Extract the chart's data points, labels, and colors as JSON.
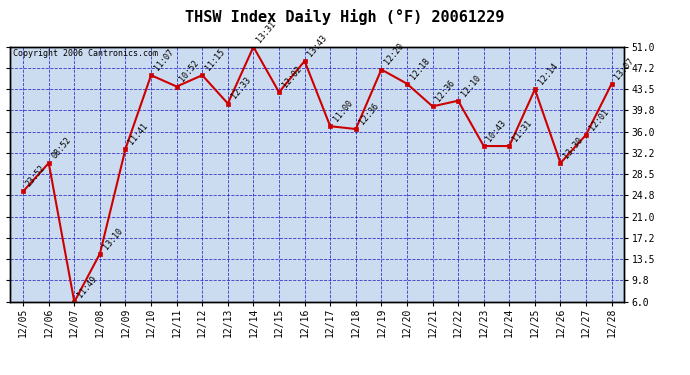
{
  "title": "THSW Index Daily High (°F) 20061229",
  "copyright": "Copyright 2006 Cantronics.com",
  "dates": [
    "12/05",
    "12/06",
    "12/07",
    "12/08",
    "12/09",
    "12/10",
    "12/11",
    "12/12",
    "12/13",
    "12/14",
    "12/15",
    "12/16",
    "12/17",
    "12/18",
    "12/19",
    "12/20",
    "12/21",
    "12/22",
    "12/23",
    "12/24",
    "12/25",
    "12/26",
    "12/27",
    "12/28"
  ],
  "values": [
    25.5,
    30.5,
    6.0,
    14.5,
    33.0,
    46.0,
    44.0,
    46.0,
    41.0,
    51.0,
    43.0,
    48.5,
    37.0,
    36.5,
    47.0,
    44.5,
    40.5,
    41.5,
    33.5,
    33.5,
    43.5,
    30.5,
    35.5,
    44.5
  ],
  "time_labels": [
    "23:52",
    "08:52",
    "11:49",
    "13:10",
    "11:41",
    "11:07",
    "10:52",
    "11:15",
    "12:33",
    "13:31",
    "12:02",
    "13:43",
    "11:00",
    "12:36",
    "12:20",
    "12:18",
    "12:36",
    "12:10",
    "10:43",
    "11:31",
    "12:14",
    "13:30",
    "12:01",
    "13:07"
  ],
  "ylim_min": 6.0,
  "ylim_max": 51.0,
  "yticks": [
    6.0,
    9.8,
    13.5,
    17.2,
    21.0,
    24.8,
    28.5,
    32.2,
    36.0,
    39.8,
    43.5,
    47.2,
    51.0
  ],
  "ytick_labels": [
    "6.0",
    "9.8",
    "13.5",
    "17.2",
    "21.0",
    "24.8",
    "28.5",
    "32.2",
    "36.0",
    "39.8",
    "43.5",
    "47.2",
    "51.0"
  ],
  "line_color": "#cc0000",
  "marker_color": "#cc0000",
  "bg_color": "#ffffff",
  "plot_bg_color": "#ccdcf0",
  "grid_color": "#0000bb",
  "title_fontsize": 11,
  "copyright_fontsize": 6,
  "label_fontsize": 6,
  "tick_fontsize": 7
}
